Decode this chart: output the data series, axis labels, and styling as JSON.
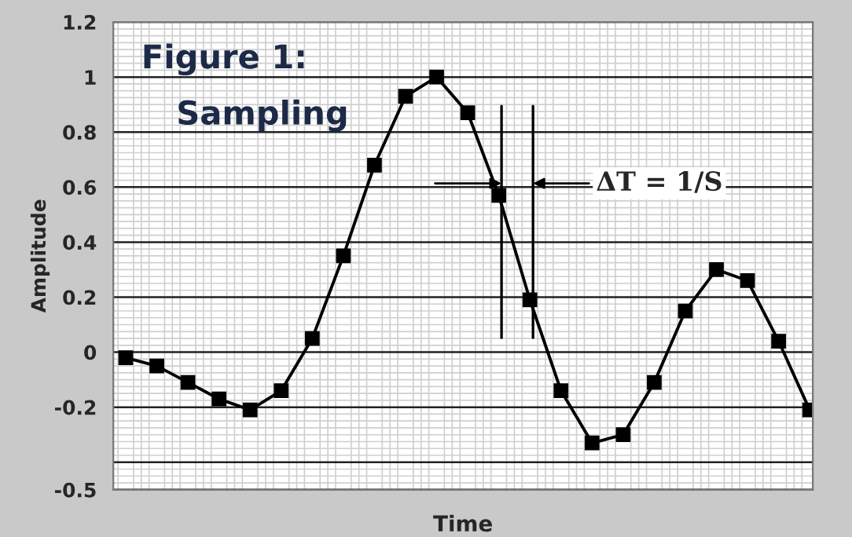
{
  "chart_data": {
    "type": "line",
    "xlabel": "Time",
    "ylabel": "Amplitude",
    "annotations": [
      "Figure 1:",
      "Sampling",
      "ΔT = 1/S"
    ],
    "categories": [
      null,
      null,
      null,
      null,
      null,
      null,
      null,
      null,
      null,
      null,
      null,
      null,
      null,
      null,
      null,
      null,
      null,
      null,
      null,
      null,
      null,
      null,
      null
    ],
    "series": [
      {
        "color": "#000000",
        "values": [
          -0.02,
          -0.05,
          -0.11,
          -0.17,
          -0.21,
          -0.14,
          0.05,
          0.35,
          0.68,
          0.93,
          1.0,
          0.87,
          0.57,
          0.19,
          -0.14,
          -0.33,
          -0.3,
          -0.11,
          0.15,
          0.3,
          0.26,
          0.04,
          -0.21
        ]
      }
    ],
    "ylim": [
      -0.5,
      1.2
    ],
    "yticks": [
      1.2,
      1,
      0.8,
      0.6,
      0.4,
      0.2,
      0,
      -0.2,
      {
        "value": -0.4,
        "label": null
      },
      -0.5
    ],
    "grid": true,
    "marker": "square",
    "line_style": "solid",
    "legend": false
  }
}
